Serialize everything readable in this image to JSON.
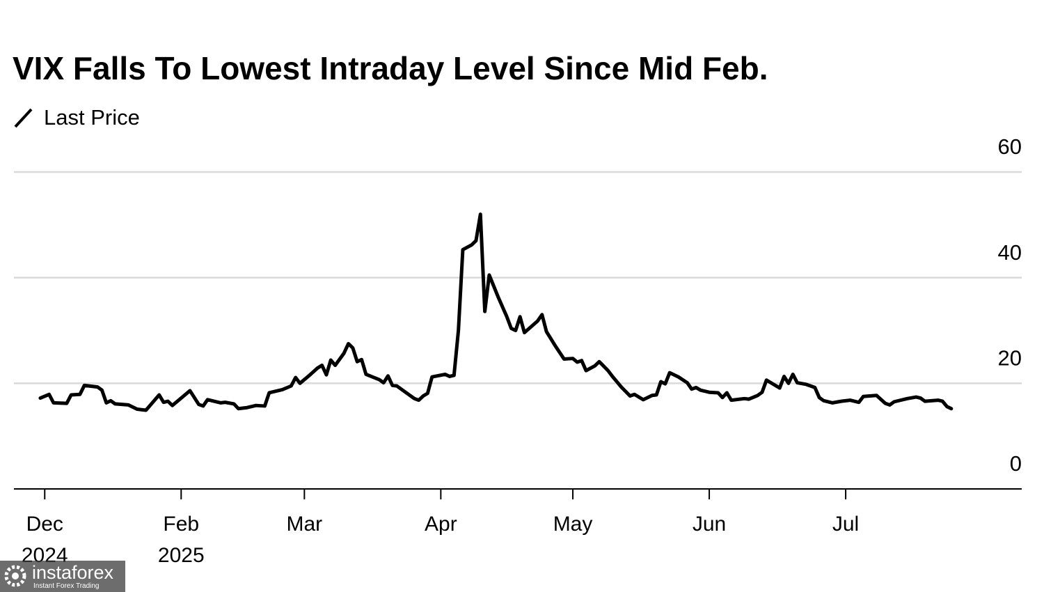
{
  "chart_data": {
    "type": "line",
    "title": "VIX Falls To Lowest Intraday Level Since Mid Feb.",
    "series": [
      {
        "name": "Last Price",
        "color": "#000000",
        "x": [
          6,
          8,
          9,
          12,
          13,
          15,
          16,
          19,
          20,
          21,
          22,
          23,
          26,
          28,
          30,
          33,
          34,
          35,
          36,
          40,
          42,
          43,
          44,
          47,
          48,
          50,
          51,
          53,
          55,
          57,
          58,
          61,
          63,
          64,
          65,
          67,
          69,
          70,
          71,
          72,
          73,
          75,
          76,
          77,
          78,
          79,
          80,
          83,
          84,
          85,
          86,
          87,
          89,
          91,
          92,
          93,
          94,
          95,
          98,
          99,
          100,
          101,
          102,
          104,
          105,
          106,
          107,
          108,
          110,
          112,
          113,
          114,
          115,
          116,
          119,
          120,
          121,
          123,
          125,
          127,
          128,
          129,
          130,
          132,
          133,
          135,
          136,
          138,
          140,
          141,
          143,
          145,
          146,
          147,
          148,
          149,
          151,
          153,
          154,
          155,
          156,
          158,
          160,
          161,
          162,
          163,
          166,
          167,
          169,
          170,
          171,
          174,
          175,
          176,
          177,
          178,
          180,
          182,
          183,
          184,
          186,
          188,
          190,
          192,
          193,
          196,
          198,
          199,
          200,
          203,
          205,
          206,
          207,
          210,
          211,
          212,
          213
        ],
        "values": [
          17.2,
          17.9,
          16.3,
          16.2,
          17.8,
          17.9,
          19.6,
          19.3,
          18.7,
          16.3,
          16.7,
          16.1,
          15.9,
          15.1,
          14.9,
          17.8,
          16.4,
          16.6,
          15.8,
          18.6,
          16.0,
          15.7,
          16.9,
          16.3,
          16.4,
          16.1,
          15.2,
          15.4,
          15.8,
          15.7,
          18.2,
          18.8,
          19.5,
          21.1,
          20.0,
          21.4,
          22.9,
          23.4,
          21.6,
          24.4,
          23.4,
          25.7,
          27.5,
          26.7,
          24.1,
          24.5,
          21.7,
          20.7,
          20.1,
          21.4,
          19.6,
          19.5,
          18.3,
          17.1,
          16.8,
          17.6,
          18.1,
          21.2,
          21.7,
          21.3,
          21.5,
          30.0,
          45.3,
          46.2,
          47.0,
          52.0,
          33.6,
          40.5,
          36.4,
          32.6,
          30.4,
          30.0,
          32.6,
          29.6,
          31.8,
          33.0,
          29.8,
          27.1,
          24.6,
          24.7,
          24.0,
          24.3,
          22.4,
          23.3,
          24.1,
          22.4,
          21.3,
          19.3,
          17.6,
          17.9,
          16.9,
          17.7,
          17.8,
          20.3,
          19.9,
          22.0,
          21.2,
          20.1,
          18.9,
          19.2,
          18.7,
          18.3,
          18.2,
          17.3,
          18.2,
          16.8,
          17.1,
          17.0,
          17.7,
          18.3,
          20.6,
          19.1,
          21.3,
          20.0,
          21.7,
          20.1,
          19.8,
          19.2,
          17.3,
          16.7,
          16.3,
          16.6,
          16.8,
          16.4,
          17.5,
          17.7,
          16.2,
          15.9,
          16.5,
          17.1,
          17.4,
          17.2,
          16.6,
          16.8,
          16.6,
          15.6,
          15.2
        ]
      }
    ],
    "xlim": [
      0,
      229
    ],
    "xticks": [
      {
        "value": 7,
        "label": "Dec 2024"
      },
      {
        "value": 38,
        "label": "Feb 2025"
      },
      {
        "value": 66,
        "label": "Mar"
      },
      {
        "value": 97,
        "label": "Apr"
      },
      {
        "value": 127,
        "label": "May"
      },
      {
        "value": 158,
        "label": "Jun"
      },
      {
        "value": 189,
        "label": "Jul"
      }
    ],
    "ylim": [
      0,
      60
    ],
    "yticks": [
      0,
      20,
      40,
      60
    ],
    "grid": true,
    "watermark": {
      "brand": "instaforex",
      "tagline": "Instant Forex Trading"
    }
  }
}
